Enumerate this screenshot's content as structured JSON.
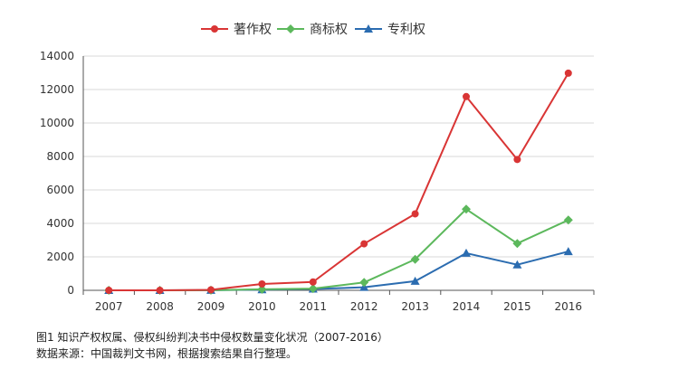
{
  "chart_data": {
    "type": "line",
    "categories": [
      "2007",
      "2008",
      "2009",
      "2010",
      "2011",
      "2012",
      "2013",
      "2014",
      "2015",
      "2016"
    ],
    "series": [
      {
        "name": "著作权",
        "color": "#d93535",
        "marker": "circle",
        "values": [
          0,
          0,
          30,
          380,
          500,
          2780,
          4570,
          11580,
          7820,
          12980
        ]
      },
      {
        "name": "商标权",
        "color": "#5cb85c",
        "marker": "diamond",
        "values": [
          0,
          0,
          10,
          60,
          100,
          470,
          1850,
          4850,
          2800,
          4200
        ]
      },
      {
        "name": "专利权",
        "color": "#2b6cb0",
        "marker": "triangle",
        "values": [
          0,
          0,
          5,
          40,
          80,
          180,
          550,
          2220,
          1530,
          2320
        ]
      }
    ],
    "yticks": [
      0,
      2000,
      4000,
      6000,
      8000,
      10000,
      12000,
      14000
    ],
    "ylim": [
      0,
      14000
    ],
    "grid": true,
    "legend_position": "top-center"
  },
  "caption": {
    "title": "图1   知识产权权属、侵权纠纷判决书中侵权数量变化状况（2007-2016）",
    "source": "数据来源：中国裁判文书网，根据搜索结果自行整理。"
  }
}
